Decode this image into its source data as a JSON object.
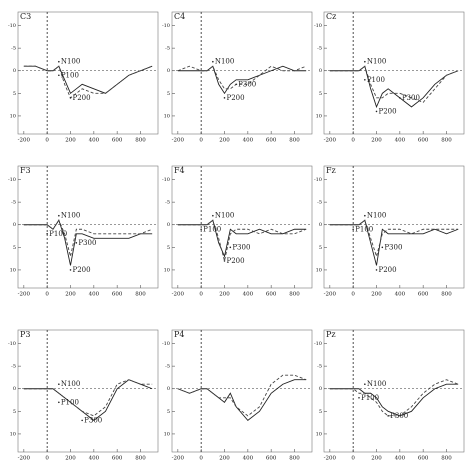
{
  "chart_data": [
    {
      "type": "line",
      "title": "C3",
      "x": [
        -200,
        -100,
        0,
        50,
        100,
        150,
        200,
        250,
        300,
        400,
        500,
        600,
        700,
        800,
        900
      ],
      "xlim": [
        -250,
        950
      ],
      "xticks": [
        -200,
        0,
        200,
        400,
        600,
        800
      ],
      "ylim": [
        -13,
        14
      ],
      "yticks": [
        -10,
        -5,
        0,
        5,
        10
      ],
      "inverted": true,
      "series": [
        {
          "color": "#222",
          "dash": false,
          "values": [
            -1,
            -1,
            0,
            0,
            -1,
            2,
            5,
            4,
            3,
            4,
            5,
            3,
            1,
            0,
            -1
          ]
        },
        {
          "color": "#444",
          "dash": true,
          "values": [
            -1,
            -1,
            0,
            0,
            -1,
            3,
            6,
            5,
            4,
            5,
            5,
            3,
            1,
            0,
            -1
          ]
        }
      ],
      "annotations": [
        {
          "text": "N100",
          "x": 100,
          "y": -2
        },
        {
          "text": "P100",
          "x": 100,
          "y": 1
        },
        {
          "text": "P200",
          "x": 200,
          "y": 6
        }
      ]
    },
    {
      "type": "line",
      "title": "C4",
      "x": [
        -200,
        -100,
        0,
        50,
        100,
        150,
        200,
        250,
        300,
        400,
        500,
        600,
        700,
        800,
        900
      ],
      "xlim": [
        -250,
        950
      ],
      "xticks": [
        -200,
        0,
        200,
        400,
        600,
        800
      ],
      "ylim": [
        -13,
        14
      ],
      "yticks": [
        -10,
        -5,
        0,
        5,
        10
      ],
      "inverted": true,
      "series": [
        {
          "color": "#222",
          "dash": false,
          "values": [
            0,
            0,
            0,
            0,
            -1,
            3,
            5,
            3,
            2,
            2,
            1,
            0,
            -1,
            0,
            0
          ]
        },
        {
          "color": "#444",
          "dash": true,
          "values": [
            0,
            -1,
            0,
            0,
            -1,
            2,
            4,
            4,
            3,
            3,
            1,
            -1,
            0,
            0,
            -1
          ]
        }
      ],
      "annotations": [
        {
          "text": "N100",
          "x": 100,
          "y": -2
        },
        {
          "text": "P200",
          "x": 200,
          "y": 6
        },
        {
          "text": "P300",
          "x": 300,
          "y": 3
        }
      ]
    },
    {
      "type": "line",
      "title": "Cz",
      "x": [
        -200,
        -100,
        0,
        50,
        100,
        150,
        200,
        250,
        300,
        400,
        500,
        600,
        700,
        800,
        900
      ],
      "xlim": [
        -250,
        950
      ],
      "xticks": [
        -200,
        0,
        200,
        400,
        600,
        800
      ],
      "ylim": [
        -13,
        14
      ],
      "yticks": [
        -10,
        -5,
        0,
        5,
        10
      ],
      "inverted": true,
      "series": [
        {
          "color": "#222",
          "dash": false,
          "values": [
            0,
            0,
            0,
            0,
            -1,
            4,
            8,
            5,
            4,
            6,
            8,
            6,
            3,
            1,
            0
          ]
        },
        {
          "color": "#444",
          "dash": true,
          "values": [
            0,
            0,
            0,
            0,
            -1,
            3,
            6,
            6,
            5,
            5,
            6,
            7,
            4,
            1,
            0
          ]
        }
      ],
      "annotations": [
        {
          "text": "N100",
          "x": 100,
          "y": -2
        },
        {
          "text": "P100",
          "x": 100,
          "y": 2
        },
        {
          "text": "P200",
          "x": 200,
          "y": 9
        },
        {
          "text": "P300",
          "x": 400,
          "y": 6
        }
      ]
    },
    {
      "type": "line",
      "title": "F3",
      "x": [
        -200,
        -100,
        0,
        50,
        100,
        150,
        200,
        250,
        300,
        400,
        500,
        600,
        700,
        800,
        900
      ],
      "xlim": [
        -250,
        950
      ],
      "xticks": [
        -200,
        0,
        200,
        400,
        600,
        800
      ],
      "ylim": [
        -13,
        14
      ],
      "yticks": [
        -10,
        -5,
        0,
        5,
        10
      ],
      "inverted": true,
      "series": [
        {
          "color": "#222",
          "dash": false,
          "values": [
            0,
            0,
            0,
            1,
            -1,
            3,
            9,
            2,
            2,
            3,
            3,
            3,
            3,
            2,
            2
          ]
        },
        {
          "color": "#444",
          "dash": true,
          "values": [
            0,
            0,
            0,
            1,
            -1,
            2,
            7,
            1,
            1,
            2,
            2,
            2,
            2,
            2,
            1
          ]
        }
      ],
      "annotations": [
        {
          "text": "N100",
          "x": 100,
          "y": -2
        },
        {
          "text": "P100",
          "x": 0,
          "y": 2
        },
        {
          "text": "P300",
          "x": 250,
          "y": 4
        },
        {
          "text": "P200",
          "x": 200,
          "y": 10
        }
      ]
    },
    {
      "type": "line",
      "title": "F4",
      "x": [
        -200,
        -100,
        0,
        50,
        100,
        150,
        200,
        250,
        300,
        400,
        500,
        600,
        700,
        800,
        900
      ],
      "xlim": [
        -250,
        950
      ],
      "xticks": [
        -200,
        0,
        200,
        400,
        600,
        800
      ],
      "ylim": [
        -13,
        14
      ],
      "yticks": [
        -10,
        -5,
        0,
        5,
        10
      ],
      "inverted": true,
      "series": [
        {
          "color": "#222",
          "dash": false,
          "values": [
            0,
            0,
            0,
            0,
            -1,
            4,
            7,
            1,
            2,
            2,
            1,
            2,
            2,
            1,
            1
          ]
        },
        {
          "color": "#444",
          "dash": true,
          "values": [
            0,
            0,
            0,
            0,
            -1,
            3,
            8,
            2,
            1,
            1,
            2,
            1,
            2,
            2,
            1
          ]
        }
      ],
      "annotations": [
        {
          "text": "N100",
          "x": 100,
          "y": -2
        },
        {
          "text": "P100",
          "x": 0,
          "y": 1
        },
        {
          "text": "P300",
          "x": 250,
          "y": 5
        },
        {
          "text": "P200",
          "x": 200,
          "y": 8
        }
      ]
    },
    {
      "type": "line",
      "title": "Fz",
      "x": [
        -200,
        -100,
        0,
        50,
        100,
        150,
        200,
        250,
        300,
        400,
        500,
        600,
        700,
        800,
        900
      ],
      "xlim": [
        -250,
        950
      ],
      "xticks": [
        -200,
        0,
        200,
        400,
        600,
        800
      ],
      "ylim": [
        -13,
        14
      ],
      "yticks": [
        -10,
        -5,
        0,
        5,
        10
      ],
      "inverted": true,
      "series": [
        {
          "color": "#222",
          "dash": false,
          "values": [
            0,
            0,
            0,
            0,
            -1,
            4,
            9,
            1,
            2,
            2,
            2,
            2,
            1,
            2,
            1
          ]
        },
        {
          "color": "#444",
          "dash": true,
          "values": [
            0,
            0,
            0,
            0,
            -1,
            3,
            7,
            2,
            1,
            1,
            2,
            1,
            1,
            1,
            1
          ]
        }
      ],
      "annotations": [
        {
          "text": "N100",
          "x": 100,
          "y": -2
        },
        {
          "text": "P100",
          "x": 0,
          "y": 1
        },
        {
          "text": "P300",
          "x": 250,
          "y": 5
        },
        {
          "text": "P200",
          "x": 200,
          "y": 10
        }
      ]
    },
    {
      "type": "line",
      "title": "P3",
      "x": [
        -200,
        -100,
        0,
        50,
        100,
        150,
        200,
        250,
        300,
        400,
        500,
        600,
        700,
        800,
        900
      ],
      "xlim": [
        -250,
        950
      ],
      "xticks": [
        -200,
        0,
        200,
        400,
        600,
        800
      ],
      "ylim": [
        -13,
        14
      ],
      "yticks": [
        -10,
        -5,
        0,
        5,
        10
      ],
      "inverted": true,
      "series": [
        {
          "color": "#222",
          "dash": false,
          "values": [
            0,
            0,
            0,
            0,
            1,
            2,
            3,
            4,
            5,
            7,
            5,
            0,
            -2,
            -1,
            0
          ]
        },
        {
          "color": "#444",
          "dash": true,
          "values": [
            0,
            0,
            0,
            0,
            1,
            2,
            3,
            4,
            5,
            6,
            4,
            -1,
            -2,
            -1,
            -1
          ]
        }
      ],
      "annotations": [
        {
          "text": "N100",
          "x": 100,
          "y": -1
        },
        {
          "text": "P100",
          "x": 100,
          "y": 3
        },
        {
          "text": "P300",
          "x": 300,
          "y": 7
        }
      ]
    },
    {
      "type": "line",
      "title": "P4",
      "x": [
        -200,
        -100,
        0,
        50,
        100,
        150,
        200,
        250,
        300,
        400,
        500,
        600,
        700,
        800,
        900
      ],
      "xlim": [
        -250,
        950
      ],
      "xticks": [
        -200,
        0,
        200,
        400,
        600,
        800
      ],
      "ylim": [
        -13,
        14
      ],
      "yticks": [
        -10,
        -5,
        0,
        5,
        10
      ],
      "inverted": true,
      "series": [
        {
          "color": "#222",
          "dash": false,
          "values": [
            0,
            1,
            0,
            0,
            1,
            2,
            3,
            1,
            4,
            7,
            5,
            1,
            -1,
            -2,
            -2
          ]
        },
        {
          "color": "#444",
          "dash": true,
          "values": [
            0,
            1,
            0,
            0,
            1,
            2,
            2,
            2,
            4,
            6,
            4,
            -1,
            -3,
            -3,
            -2
          ]
        }
      ],
      "annotations": []
    },
    {
      "type": "line",
      "title": "Pz",
      "x": [
        -200,
        -100,
        0,
        50,
        100,
        150,
        200,
        250,
        300,
        400,
        500,
        600,
        700,
        800,
        900
      ],
      "xlim": [
        -250,
        950
      ],
      "xticks": [
        -200,
        0,
        200,
        400,
        600,
        800
      ],
      "ylim": [
        -13,
        14
      ],
      "yticks": [
        -10,
        -5,
        0,
        5,
        10
      ],
      "inverted": true,
      "series": [
        {
          "color": "#222",
          "dash": false,
          "values": [
            0,
            0,
            0,
            0,
            1,
            1,
            2,
            4,
            5,
            6,
            5,
            2,
            0,
            -1,
            -1
          ]
        },
        {
          "color": "#444",
          "dash": true,
          "values": [
            0,
            0,
            0,
            1,
            1,
            2,
            3,
            5,
            6,
            6,
            4,
            1,
            -1,
            -2,
            -1
          ]
        }
      ],
      "annotations": [
        {
          "text": "N100",
          "x": 100,
          "y": -1
        },
        {
          "text": "P100",
          "x": 50,
          "y": 2
        },
        {
          "text": "P300",
          "x": 300,
          "y": 6
        }
      ]
    }
  ]
}
